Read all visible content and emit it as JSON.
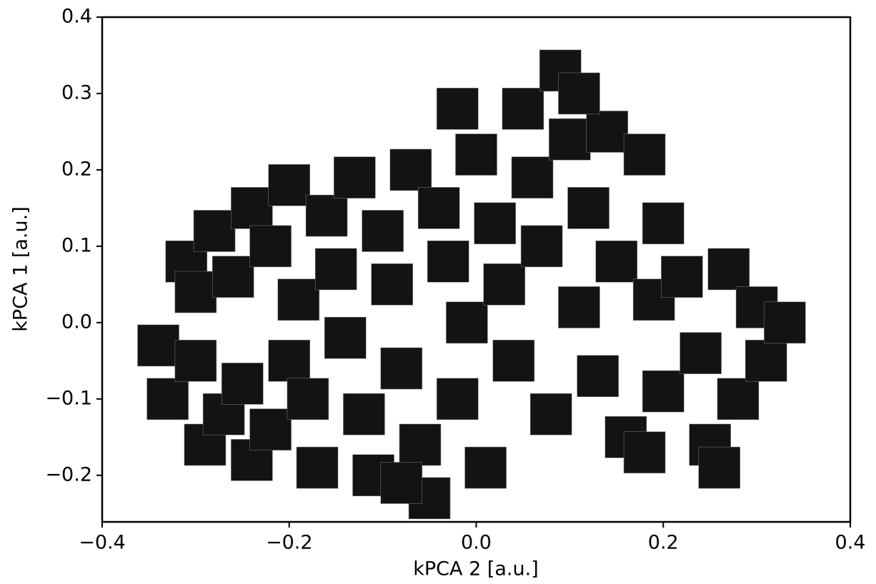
{
  "chart_data": {
    "type": "scatter",
    "xlabel": "kPCA 2 [a.u.]",
    "ylabel": "kPCA 1 [a.u.]",
    "xlim": [
      -0.4,
      0.4
    ],
    "ylim": [
      -0.261,
      0.4
    ],
    "xticks": [
      {
        "value": -0.4,
        "label": "−0.4"
      },
      {
        "value": -0.2,
        "label": "−0.2"
      },
      {
        "value": 0.0,
        "label": "0.0"
      },
      {
        "value": 0.2,
        "label": "0.2"
      },
      {
        "value": 0.4,
        "label": "0.4"
      }
    ],
    "yticks": [
      {
        "value": -0.2,
        "label": "−0.2"
      },
      {
        "value": -0.1,
        "label": "−0.1"
      },
      {
        "value": 0.0,
        "label": "0.0"
      },
      {
        "value": 0.1,
        "label": "0.1"
      },
      {
        "value": 0.2,
        "label": "0.2"
      },
      {
        "value": 0.3,
        "label": "0.3"
      },
      {
        "value": 0.4,
        "label": "0.4"
      }
    ],
    "x": [
      -0.34,
      -0.33,
      -0.3,
      -0.29,
      -0.27,
      -0.25,
      -0.24,
      -0.22,
      -0.2,
      -0.18,
      -0.17,
      -0.31,
      -0.3,
      -0.28,
      -0.26,
      -0.24,
      -0.22,
      -0.2,
      -0.19,
      -0.16,
      -0.15,
      -0.14,
      -0.13,
      -0.12,
      -0.11,
      -0.1,
      -0.09,
      -0.08,
      -0.07,
      -0.06,
      -0.05,
      -0.04,
      -0.03,
      -0.02,
      -0.01,
      0.0,
      0.01,
      0.02,
      0.03,
      0.04,
      0.05,
      0.06,
      0.07,
      0.08,
      0.09,
      0.1,
      0.11,
      0.12,
      0.13,
      0.14,
      0.15,
      0.16,
      0.18,
      0.19,
      0.2,
      0.22,
      0.24,
      0.25,
      0.27,
      0.28,
      0.3,
      0.31,
      0.33,
      0.26,
      0.18,
      -0.02,
      0.11,
      0.2,
      -0.08
    ],
    "y": [
      -0.03,
      -0.1,
      -0.05,
      -0.16,
      -0.12,
      -0.08,
      -0.18,
      -0.14,
      -0.05,
      -0.1,
      -0.19,
      0.08,
      0.04,
      0.12,
      0.06,
      0.15,
      0.1,
      0.18,
      0.03,
      0.14,
      0.07,
      -0.02,
      0.19,
      -0.12,
      -0.2,
      0.12,
      0.05,
      -0.06,
      0.2,
      -0.16,
      -0.23,
      0.15,
      0.08,
      -0.1,
      0.0,
      0.22,
      -0.19,
      0.13,
      0.05,
      -0.05,
      0.28,
      0.19,
      0.1,
      -0.12,
      0.33,
      0.24,
      0.02,
      0.15,
      -0.07,
      0.25,
      0.08,
      -0.15,
      0.22,
      0.03,
      -0.09,
      0.06,
      -0.04,
      -0.16,
      0.07,
      -0.1,
      0.02,
      -0.05,
      0.0,
      -0.19,
      -0.17,
      0.28,
      0.3,
      0.13,
      -0.21
    ],
    "color": "#808080"
  }
}
